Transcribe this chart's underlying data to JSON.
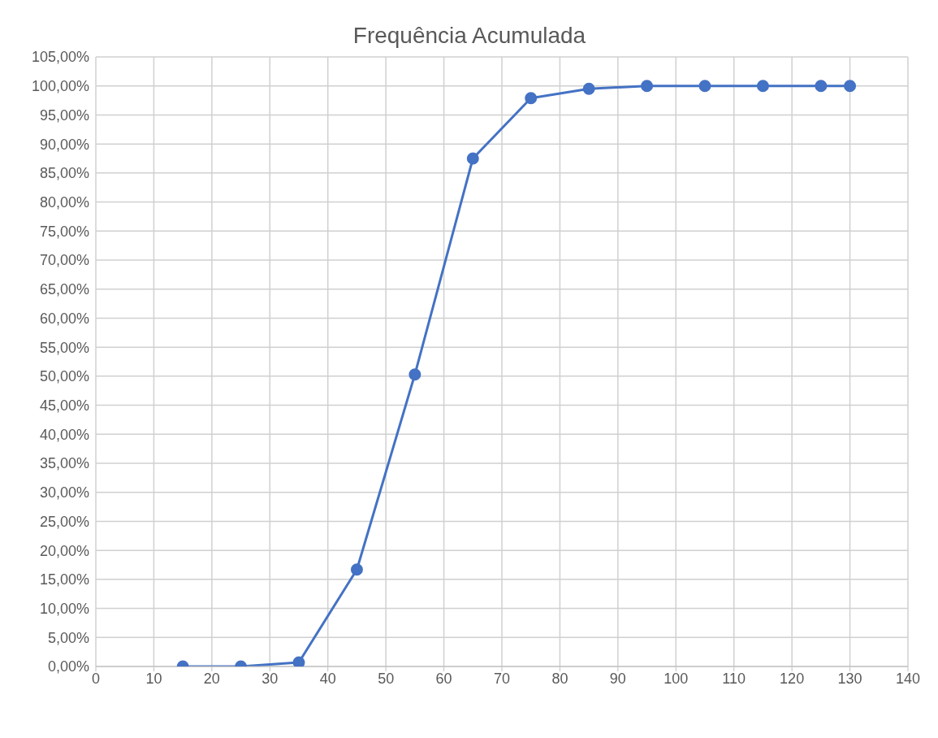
{
  "chart_data": {
    "type": "line",
    "title": "Frequência Acumulada",
    "x": [
      15,
      25,
      35,
      45,
      55,
      65,
      75,
      85,
      95,
      105,
      115,
      125,
      130
    ],
    "series": [
      {
        "color": "#4472c4",
        "values": [
          0,
          0,
          0.7,
          16.7,
          50.3,
          87.5,
          97.9,
          99.5,
          100,
          100,
          100,
          100,
          100
        ]
      }
    ],
    "xlim": [
      0,
      140
    ],
    "xticks": [
      0,
      10,
      20,
      30,
      40,
      50,
      60,
      70,
      80,
      90,
      100,
      110,
      120,
      130,
      140
    ],
    "ylim": [
      0,
      105
    ],
    "yticks": [
      {
        "value": 0,
        "label": "0,00%"
      },
      {
        "value": 5,
        "label": "5,00%"
      },
      {
        "value": 10,
        "label": "10,00%"
      },
      {
        "value": 15,
        "label": "15,00%"
      },
      {
        "value": 20,
        "label": "20,00%"
      },
      {
        "value": 25,
        "label": "25,00%"
      },
      {
        "value": 30,
        "label": "30,00%"
      },
      {
        "value": 35,
        "label": "35,00%"
      },
      {
        "value": 40,
        "label": "40,00%"
      },
      {
        "value": 45,
        "label": "45,00%"
      },
      {
        "value": 50,
        "label": "50,00%"
      },
      {
        "value": 55,
        "label": "55,00%"
      },
      {
        "value": 60,
        "label": "60,00%"
      },
      {
        "value": 65,
        "label": "65,00%"
      },
      {
        "value": 70,
        "label": "70,00%"
      },
      {
        "value": 75,
        "label": "75,00%"
      },
      {
        "value": 80,
        "label": "80,00%"
      },
      {
        "value": 85,
        "label": "85,00%"
      },
      {
        "value": 90,
        "label": "90,00%"
      },
      {
        "value": 95,
        "label": "95,00%"
      },
      {
        "value": 100,
        "label": "100,00%"
      },
      {
        "value": 105,
        "label": "105,00%"
      }
    ],
    "grid": true,
    "marker": "circle",
    "line_style": "solid"
  }
}
